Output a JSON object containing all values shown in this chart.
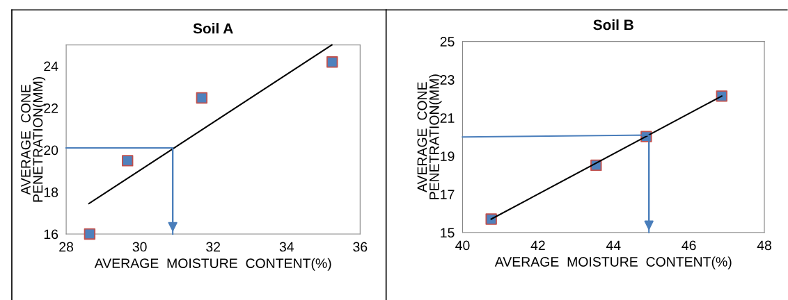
{
  "chart_data": [
    {
      "type": "scatter",
      "title": "Soil A",
      "xlabel": "AVERAGE  MOISTURE  CONTENT(%)",
      "ylabel": "AVERAGE  CONE\nPENETRATION(MM)",
      "xlim": [
        28,
        36
      ],
      "xticks": [
        28,
        30,
        32,
        34,
        36
      ],
      "ylim": [
        16,
        25
      ],
      "yticks": [
        16,
        18,
        20,
        22,
        24
      ],
      "grid": false,
      "legend": false,
      "series": [
        {
          "color": "#4f81bd",
          "marker": "square",
          "x": [
            28.64,
            29.67,
            31.69,
            35.24
          ],
          "values": [
            16.0,
            19.49,
            22.48,
            24.19
          ]
        },
        {
          "type": "line",
          "color": "#000000",
          "marker": "none",
          "line_style": "solid",
          "x": [
            28.62,
            35.23
          ],
          "values": [
            17.45,
            25.0
          ]
        },
        {
          "type": "line",
          "color": "#4a7ebb",
          "line_style": "solid",
          "x": [
            28,
            30.9,
            30.9
          ],
          "values": [
            20.1,
            20.1,
            16
          ]
        }
      ]
    },
    {
      "type": "scatter",
      "title": "Soil B",
      "xlabel": "AVERAGE  MOISTURE  CONTENT(%)",
      "ylabel": "AVERAGE  CONE\nPENETRATION(MM)",
      "xlim": [
        40,
        48
      ],
      "xticks": [
        40,
        42,
        44,
        46,
        48
      ],
      "ylim": [
        15,
        25
      ],
      "yticks": [
        15,
        17,
        19,
        21,
        23,
        25
      ],
      "grid": false,
      "legend": false,
      "series": [
        {
          "color": "#4f81bd",
          "marker": "square",
          "x": [
            40.76,
            43.54,
            44.87,
            46.87
          ],
          "values": [
            15.7,
            18.52,
            20.02,
            22.14
          ]
        },
        {
          "type": "line",
          "color": "#000000",
          "marker": "none",
          "line_style": "solid",
          "x": [
            40.76,
            46.87
          ],
          "values": [
            15.7,
            22.14
          ]
        },
        {
          "type": "line",
          "color": "#4a7ebb",
          "line_style": "solid",
          "x": [
            40,
            44.94,
            44.94
          ],
          "values": [
            20.0,
            20.1,
            15
          ]
        }
      ]
    }
  ]
}
